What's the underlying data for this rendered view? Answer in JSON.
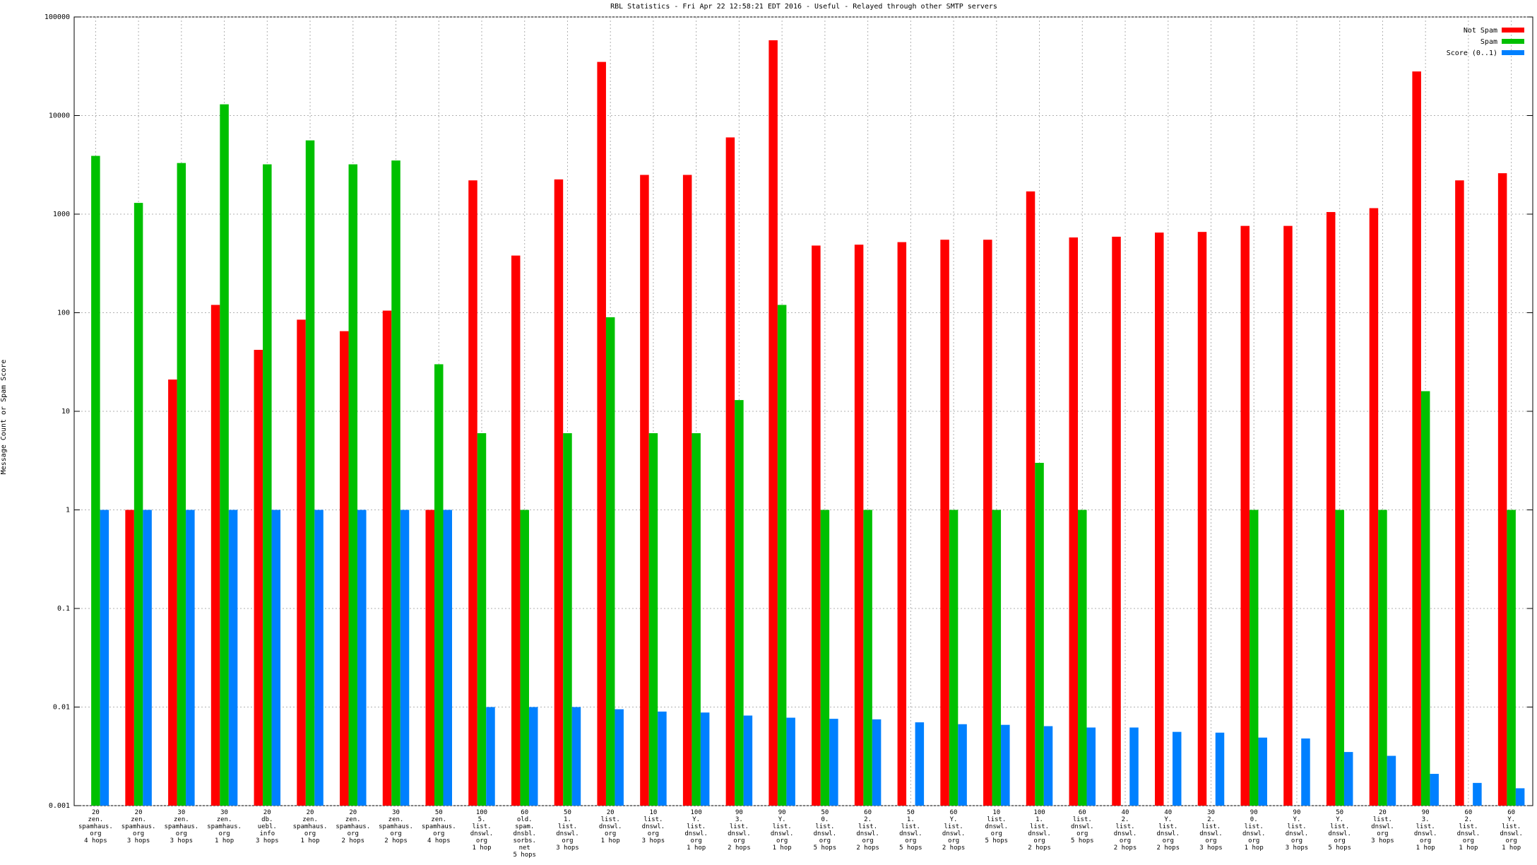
{
  "chart_data": {
    "type": "bar",
    "title": "RBL Statistics - Fri Apr 22 12:58:21 EDT 2016 - Useful - Relayed through other SMTP servers",
    "y_label": "Message Count or Spam Score",
    "log_scale": true,
    "grid": true,
    "legend": "top-right",
    "ylim": [
      0.001,
      100000
    ],
    "yticks": [
      0.001,
      0.01,
      0.1,
      1,
      10,
      100,
      1000,
      10000,
      100000
    ],
    "categories": [
      "20\nzen.\nspamhaus.\norg\n4 hops",
      "20\nzen.\nspamhaus.\norg\n3 hops",
      "30\nzen.\nspamhaus.\norg\n3 hops",
      "30\nzen.\nspamhaus.\norg\n1 hop",
      "20\ndb.\nuebl.\ninfo\n3 hops",
      "20\nzen.\nspamhaus.\norg\n1 hop",
      "20\nzen.\nspamhaus.\norg\n2 hops",
      "30\nzen.\nspamhaus.\norg\n2 hops",
      "50\nzen.\nspamhaus.\norg\n4 hops",
      "100\n5.\nlist.\ndnswl.\norg\n1 hop",
      "60\nold.\nspam.\ndnsbl.\nsorbs.\nnet\n5 hops",
      "50\n1.\nlist.\ndnswl.\norg\n3 hops",
      "20\nlist.\ndnswl.\norg\n1 hop",
      "10\nlist.\ndnswl.\norg\n3 hops",
      "100\nY.\nlist.\ndnswl.\norg\n1 hop",
      "90\n3.\nlist.\ndnswl.\norg\n2 hops",
      "90\nY.\nlist.\ndnswl.\norg\n1 hop",
      "50\n0.\nlist.\ndnswl.\norg\n5 hops",
      "60\n2.\nlist.\ndnswl.\norg\n2 hops",
      "50\n1.\nlist.\ndnswl.\norg\n5 hops",
      "60\nY.\nlist.\ndnswl.\norg\n2 hops",
      "10\nlist.\ndnswl.\norg\n5 hops",
      "100\n1.\nlist.\ndnswl.\norg\n2 hops",
      "60\nlist.\ndnswl.\norg\n5 hops",
      "40\n2.\nlist.\ndnswl.\norg\n2 hops",
      "40\nY.\nlist.\ndnswl.\norg\n2 hops",
      "30\n2.\nlist.\ndnswl.\norg\n3 hops",
      "90\n0.\nlist.\ndnswl.\norg\n1 hop",
      "90\nY.\nlist.\ndnswl.\norg\n3 hops",
      "50\nY.\nlist.\ndnswl.\norg\n5 hops",
      "20\nlist.\ndnswl.\norg\n3 hops",
      "90\n3.\nlist.\ndnswl.\norg\n1 hop",
      "60\n2.\nlist.\ndnswl.\norg\n1 hop",
      "60\nY.\nlist.\ndnswl.\norg\n1 hop"
    ],
    "series": [
      {
        "name": "Not Spam",
        "color": "#ff0000",
        "values": [
          null,
          1,
          21,
          120,
          42,
          85,
          65,
          105,
          1,
          2200,
          380,
          2250,
          35000,
          2500,
          2500,
          6000,
          58000,
          480,
          490,
          520,
          550,
          550,
          1700,
          580,
          590,
          650,
          660,
          760,
          760,
          1050,
          1150,
          28000,
          2200,
          2600
        ]
      },
      {
        "name": "Spam",
        "color": "#00c000",
        "values": [
          3900,
          1300,
          3300,
          13000,
          3200,
          5600,
          3200,
          3500,
          30,
          6,
          1,
          6,
          90,
          6,
          6,
          13,
          120,
          1,
          1,
          null,
          1,
          1,
          3,
          1,
          null,
          null,
          null,
          1,
          null,
          1,
          1,
          16,
          null,
          1
        ]
      },
      {
        "name": "Score (0..1)",
        "color": "#0080ff",
        "values": [
          1,
          1,
          1,
          1,
          1,
          1,
          1,
          1,
          1,
          0.01,
          0.01,
          0.01,
          0.0095,
          0.009,
          0.0088,
          0.0082,
          0.0078,
          0.0076,
          0.0075,
          0.007,
          0.0067,
          0.0066,
          0.0064,
          0.0062,
          0.0062,
          0.0056,
          0.0055,
          0.0049,
          0.0048,
          0.0035,
          0.0032,
          0.0021,
          0.0017,
          0.0015
        ]
      }
    ]
  }
}
